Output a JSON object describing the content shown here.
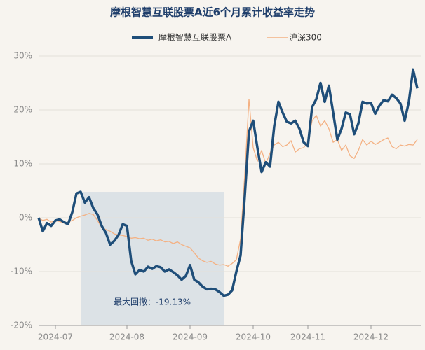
{
  "chart_data": {
    "type": "line",
    "title": "摩根智慧互联股票A近6个月累计收益率走势",
    "categories": [
      null,
      null,
      null,
      null,
      "2024-07",
      null,
      null,
      null,
      null,
      null,
      null,
      null,
      null,
      null,
      null,
      null,
      null,
      null,
      null,
      null,
      null,
      "2024-08",
      null,
      null,
      null,
      null,
      null,
      null,
      null,
      null,
      null,
      null,
      null,
      null,
      null,
      null,
      "2024-09",
      null,
      null,
      null,
      null,
      null,
      null,
      null,
      null,
      null,
      null,
      null,
      null,
      null,
      null,
      "2024-10",
      null,
      null,
      null,
      null,
      null,
      null,
      null,
      null,
      null,
      null,
      null,
      null,
      "2024-11",
      null,
      null,
      null,
      null,
      null,
      null,
      null,
      null,
      null,
      null,
      null,
      null,
      null,
      null,
      "2024-12",
      null,
      null,
      null,
      null,
      null,
      null,
      null,
      null,
      null,
      null,
      null
    ],
    "series": [
      {
        "name": "摩根智慧互联股票A",
        "color": "#1f4e79",
        "values": [
          0,
          -2.5,
          -1,
          -1.5,
          -0.5,
          -0.3,
          -0.8,
          -1.2,
          1,
          4.5,
          4.8,
          2.8,
          3.8,
          1.8,
          0.6,
          -1.5,
          -2.8,
          -5,
          -4.3,
          -3.2,
          -1.2,
          -1.5,
          -8,
          -10.5,
          -9.7,
          -10,
          -9.1,
          -9.5,
          -9,
          -9.2,
          -10,
          -9.6,
          -10.1,
          -10.7,
          -11.5,
          -10.8,
          -8.8,
          -11.5,
          -12,
          -12.8,
          -13.3,
          -13.2,
          -13.3,
          -13.8,
          -14.5,
          -14.3,
          -13.5,
          -10,
          -7,
          4,
          16,
          18,
          13,
          8.5,
          10.3,
          9.5,
          17,
          21.5,
          19.5,
          17.8,
          17.5,
          18,
          16.5,
          14,
          13.3,
          20.5,
          22,
          25,
          21.5,
          24.5,
          19.5,
          14.5,
          16.5,
          19.5,
          19.2,
          15.5,
          17.5,
          21.5,
          21.2,
          21.3,
          19.3,
          20.8,
          21.8,
          21.6,
          22.8,
          22.2,
          21.2,
          18,
          21.5,
          27.5,
          24
        ]
      },
      {
        "name": "沪深300",
        "color": "#f4b183",
        "values": [
          0,
          -0.5,
          -0.3,
          -0.8,
          -0.5,
          -0.7,
          -1,
          -0.8,
          -0.5,
          0,
          0.3,
          0.5,
          0.8,
          0.6,
          -0.5,
          -1.8,
          -2.2,
          -2.5,
          -3,
          -3.2,
          -3.3,
          -3.5,
          -3.8,
          -3.7,
          -3.9,
          -3.8,
          -4.2,
          -4,
          -4.3,
          -4.1,
          -4.5,
          -4.4,
          -4.8,
          -4.5,
          -5,
          -5.3,
          -5.6,
          -6.5,
          -7.5,
          -8,
          -8.3,
          -8.1,
          -8.6,
          -8.8,
          -8.7,
          -9,
          -8.5,
          -7.8,
          -4,
          8,
          22,
          13,
          10.5,
          12.5,
          10,
          12,
          13.5,
          14,
          13.2,
          13.5,
          14.3,
          12.2,
          12.8,
          13,
          14,
          18,
          19,
          17,
          18,
          16.5,
          14,
          14.5,
          12.5,
          13.5,
          11.5,
          11,
          12.5,
          14.5,
          13.5,
          14.2,
          13.6,
          14,
          14.5,
          14.8,
          13.2,
          12.8,
          13.5,
          13.3,
          13.6,
          13.5,
          14.5
        ]
      }
    ],
    "ylim": [
      -20,
      30
    ],
    "yticks": [
      {
        "value": -20,
        "label": "-20%"
      },
      {
        "value": -10,
        "label": "-10%"
      },
      {
        "value": 0,
        "label": "0%"
      },
      {
        "value": 10,
        "label": "10%"
      },
      {
        "value": 20,
        "label": "20%"
      },
      {
        "value": 30,
        "label": "30%"
      }
    ],
    "grid": true,
    "legend": "top",
    "annotation": "最大回撤：-19.13%"
  }
}
